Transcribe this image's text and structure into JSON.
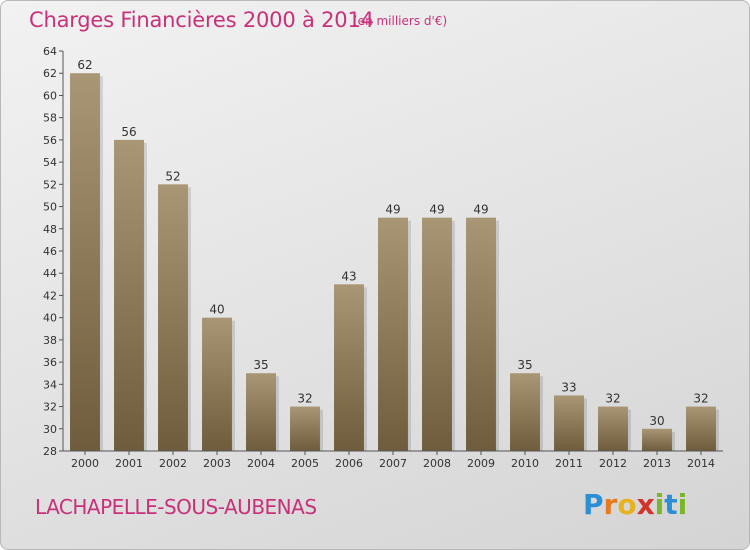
{
  "header": {
    "title": "Charges Financières 2000 à 2014",
    "unit": "(en milliers d'€)"
  },
  "footer": {
    "commune": "LACHAPELLE-SOUS-AUBENAS",
    "logo_letters": [
      "P",
      "r",
      "o",
      "x",
      "i",
      "t",
      "i"
    ]
  },
  "colors": {
    "title": "#c8317a",
    "bar_top": "#a89674",
    "bar_bottom": "#6e5c3c",
    "axis": "#555555"
  },
  "chart_data": {
    "type": "bar",
    "categories": [
      "2000",
      "2001",
      "2002",
      "2003",
      "2004",
      "2005",
      "2006",
      "2007",
      "2008",
      "2009",
      "2010",
      "2011",
      "2012",
      "2013",
      "2014"
    ],
    "values": [
      62,
      56,
      52,
      40,
      35,
      32,
      43,
      49,
      49,
      49,
      35,
      33,
      32,
      30,
      32
    ],
    "title": "Charges Financières 2000 à 2014",
    "ylim": [
      28,
      64
    ],
    "yticks": [
      28,
      30,
      32,
      34,
      36,
      38,
      40,
      42,
      44,
      46,
      48,
      50,
      52,
      54,
      56,
      58,
      60,
      62,
      64
    ],
    "grid": false,
    "data_labels": true
  }
}
